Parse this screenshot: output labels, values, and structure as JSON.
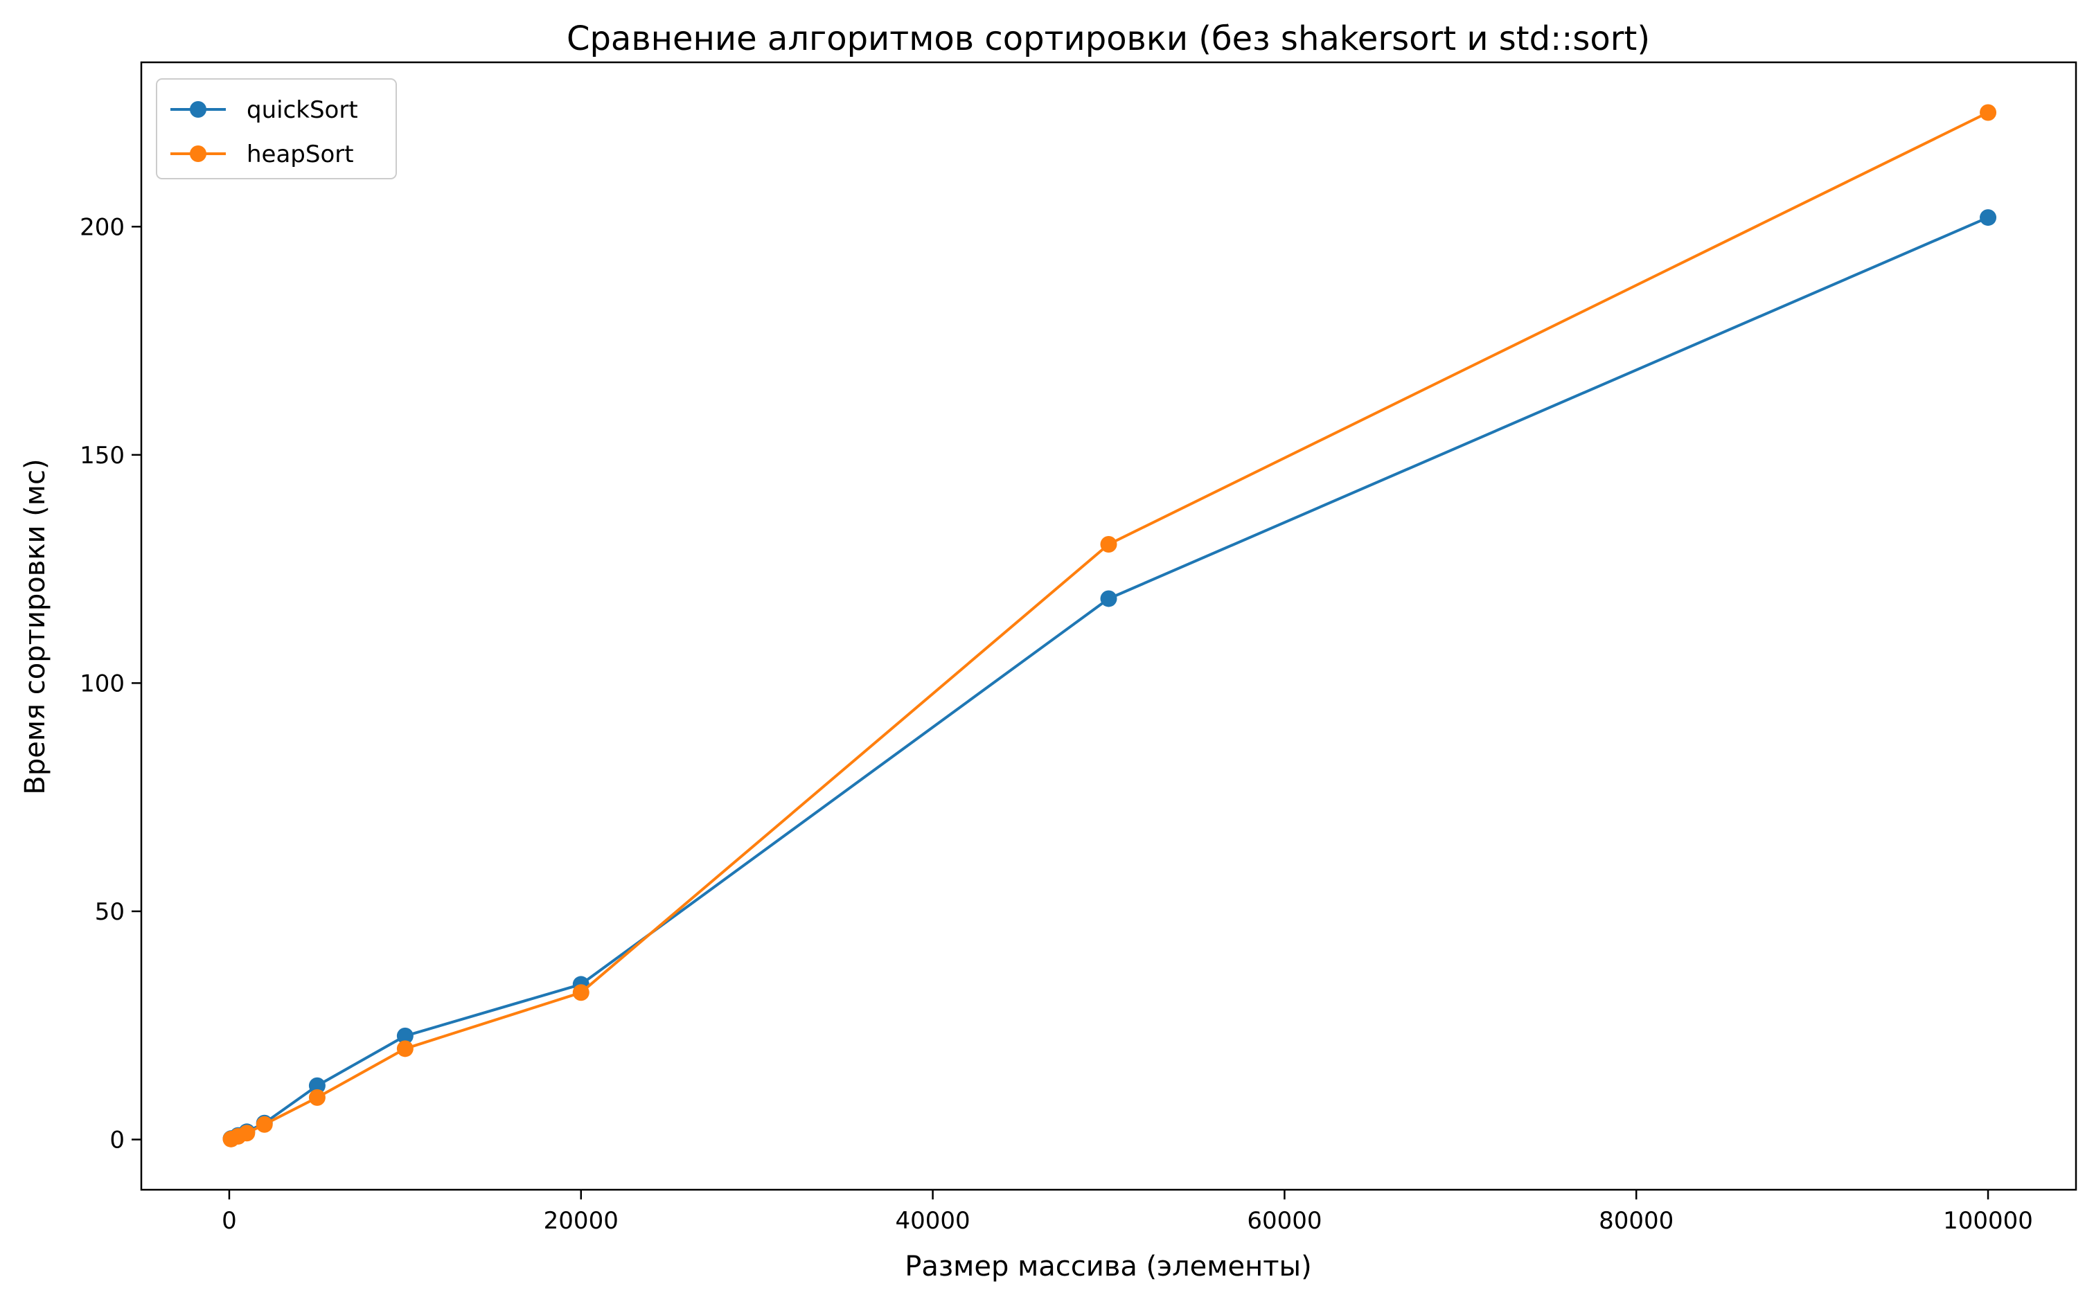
{
  "chart_data": {
    "type": "line",
    "title": "Сравнение алгоритмов сортировки (без shakersort и std::sort)",
    "xlabel": "Размер массива (элементы)",
    "ylabel": "Время сортировки (мс)",
    "xlim": [
      -5000,
      105000
    ],
    "ylim": [
      -11,
      236
    ],
    "xticks": [
      0,
      20000,
      40000,
      60000,
      80000,
      100000
    ],
    "yticks": [
      0,
      50,
      100,
      150,
      200
    ],
    "grid": false,
    "legend_position": "top-left",
    "series": [
      {
        "name": "quickSort",
        "color": "#1f77b4",
        "marker": "circle",
        "x": [
          100,
          500,
          1000,
          2000,
          5000,
          10000,
          20000,
          50000,
          100000
        ],
        "y": [
          0.2,
          0.9,
          1.7,
          3.6,
          11.8,
          22.7,
          34.0,
          118.5,
          202.0
        ]
      },
      {
        "name": "heapSort",
        "color": "#ff7f0e",
        "marker": "circle",
        "x": [
          100,
          500,
          1000,
          2000,
          5000,
          10000,
          20000,
          50000,
          100000
        ],
        "y": [
          0.1,
          0.7,
          1.4,
          3.3,
          9.2,
          19.9,
          32.2,
          130.4,
          225.0
        ]
      }
    ]
  }
}
